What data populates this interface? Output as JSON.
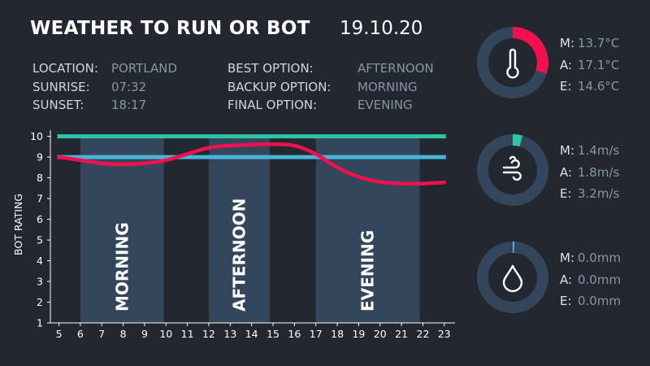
{
  "header": {
    "title": "WEATHER TO RUN OR BOT",
    "date": "19.10.20"
  },
  "info_left": [
    {
      "key": "LOCATION:",
      "value": "PORTLAND"
    },
    {
      "key": "SUNRISE:",
      "value": "07:32"
    },
    {
      "key": "SUNSET:",
      "value": "18:17"
    }
  ],
  "info_right": [
    {
      "key": "BEST OPTION:",
      "value": "AFTERNOON"
    },
    {
      "key": "BACKUP OPTION:",
      "value": "MORNING"
    },
    {
      "key": "FINAL OPTION:",
      "value": "EVENING"
    }
  ],
  "gauges": [
    {
      "icon": "thermometer-icon",
      "fraction": 0.3,
      "color": "#f0114e",
      "rows": [
        {
          "key": "M:",
          "value": "13.7°C"
        },
        {
          "key": "A:",
          "value": "17.1°C"
        },
        {
          "key": "E:",
          "value": "14.6°C"
        }
      ]
    },
    {
      "icon": "wind-icon",
      "fraction": 0.045,
      "color": "#2ec4a6",
      "rows": [
        {
          "key": "M:",
          "value": "1.4m/s"
        },
        {
          "key": "A:",
          "value": "1.8m/s"
        },
        {
          "key": "E:",
          "value": "3.2m/s"
        }
      ]
    },
    {
      "icon": "raindrop-icon",
      "fraction": 0.008,
      "color": "#4ab3d8",
      "rows": [
        {
          "key": "M:",
          "value": "0.0mm"
        },
        {
          "key": "A:",
          "value": "0.0mm"
        },
        {
          "key": "E:",
          "value": "0.0mm"
        }
      ]
    }
  ],
  "chart_data": {
    "type": "line",
    "ylabel": "BOT RATING",
    "xlabel": "",
    "xlim": [
      4.6,
      23.5
    ],
    "ylim": [
      1,
      10.3
    ],
    "x_ticks": [
      5,
      6,
      7,
      8,
      9,
      10,
      11,
      12,
      13,
      14,
      15,
      16,
      17,
      18,
      19,
      20,
      21,
      22,
      23
    ],
    "y_ticks": [
      1,
      2,
      3,
      4,
      5,
      6,
      7,
      8,
      9,
      10
    ],
    "bands": [
      {
        "label": "MORNING",
        "start": 6,
        "end": 9.9
      },
      {
        "label": "AFTERNOON",
        "start": 12,
        "end": 14.85
      },
      {
        "label": "EVENING",
        "start": 17,
        "end": 21.85
      }
    ],
    "reference_lines": [
      {
        "y": 10,
        "color": "#2ec4a6"
      },
      {
        "y": 9,
        "color": "#4ab3d8"
      }
    ],
    "series": [
      {
        "color": "#f0114e",
        "x": [
          5,
          6,
          7,
          8,
          9,
          10,
          11,
          12,
          13,
          14,
          15,
          16,
          17,
          18,
          19,
          20,
          21,
          22,
          23
        ],
        "y": [
          9.0,
          8.85,
          8.7,
          8.65,
          8.7,
          8.85,
          9.15,
          9.45,
          9.55,
          9.6,
          9.62,
          9.55,
          9.15,
          8.5,
          8.05,
          7.8,
          7.72,
          7.72,
          7.78
        ]
      }
    ]
  }
}
